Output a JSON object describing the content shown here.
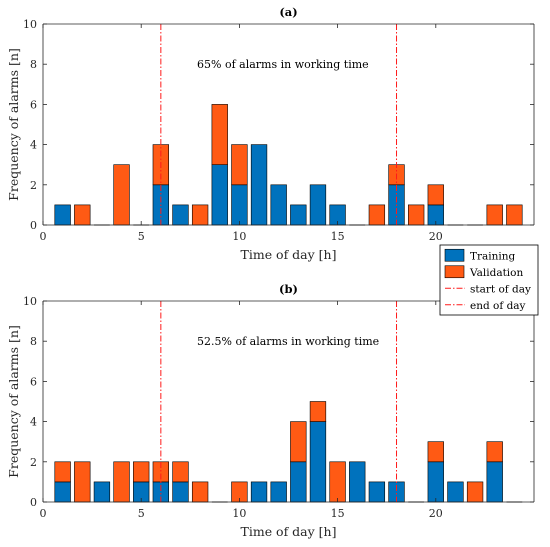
{
  "colors": {
    "training": "#0072BD",
    "validation": "#FF5A14",
    "marker_line": "#FF1A1A",
    "axis": "#262626"
  },
  "legend": {
    "placement": "right-between-panels",
    "items": [
      {
        "key": "training",
        "label": "Training"
      },
      {
        "key": "validation",
        "label": "Validation"
      },
      {
        "key": "start",
        "label": "start of day"
      },
      {
        "key": "end",
        "label": "end of day"
      }
    ]
  },
  "chart_data": [
    {
      "type": "bar",
      "stacked": true,
      "title": "(a)",
      "annotation": "65% of alarms in working time",
      "xlabel": "Time of day [h]",
      "ylabel": "Frequency of alarms [n]",
      "xlim": [
        0,
        25
      ],
      "ylim": [
        0,
        10
      ],
      "xticks": [
        0,
        5,
        10,
        15,
        20
      ],
      "yticks": [
        0,
        2,
        4,
        6,
        8,
        10
      ],
      "x": [
        1,
        2,
        3,
        4,
        5,
        6,
        7,
        8,
        9,
        10,
        11,
        12,
        13,
        14,
        15,
        16,
        17,
        18,
        19,
        20,
        21,
        22,
        23,
        24
      ],
      "series": [
        {
          "name": "Training",
          "values": [
            1,
            0,
            0,
            0,
            0,
            2,
            1,
            0,
            3,
            2,
            4,
            2,
            1,
            2,
            1,
            0,
            0,
            2,
            0,
            1,
            0,
            0,
            0,
            0
          ]
        },
        {
          "name": "Validation",
          "values": [
            0,
            1,
            0,
            3,
            0,
            2,
            0,
            1,
            3,
            2,
            0,
            0,
            0,
            0,
            0,
            0,
            1,
            1,
            1,
            1,
            0,
            0,
            1,
            1
          ]
        }
      ],
      "vlines": [
        {
          "x": 6,
          "name": "start of day"
        },
        {
          "x": 18,
          "name": "end of day"
        }
      ],
      "grid": false
    },
    {
      "type": "bar",
      "stacked": true,
      "title": "(b)",
      "annotation": "52.5% of alarms in working time",
      "xlabel": "Time of day [h]",
      "ylabel": "Frequency of alarms [n]",
      "xlim": [
        0,
        25
      ],
      "ylim": [
        0,
        10
      ],
      "xticks": [
        0,
        5,
        10,
        15,
        20
      ],
      "yticks": [
        0,
        2,
        4,
        6,
        8,
        10
      ],
      "x": [
        1,
        2,
        3,
        4,
        5,
        6,
        7,
        8,
        9,
        10,
        11,
        12,
        13,
        14,
        15,
        16,
        17,
        18,
        19,
        20,
        21,
        22,
        23,
        24
      ],
      "series": [
        {
          "name": "Training",
          "values": [
            1,
            0,
            1,
            0,
            1,
            1,
            1,
            0,
            0,
            0,
            1,
            1,
            2,
            4,
            0,
            2,
            1,
            1,
            0,
            2,
            1,
            0,
            2,
            0
          ]
        },
        {
          "name": "Validation",
          "values": [
            1,
            2,
            0,
            2,
            1,
            1,
            1,
            1,
            0,
            1,
            0,
            0,
            2,
            1,
            2,
            0,
            0,
            0,
            0,
            1,
            0,
            1,
            1,
            0
          ]
        }
      ],
      "vlines": [
        {
          "x": 6,
          "name": "start of day"
        },
        {
          "x": 18,
          "name": "end of day"
        }
      ],
      "grid": false
    }
  ]
}
